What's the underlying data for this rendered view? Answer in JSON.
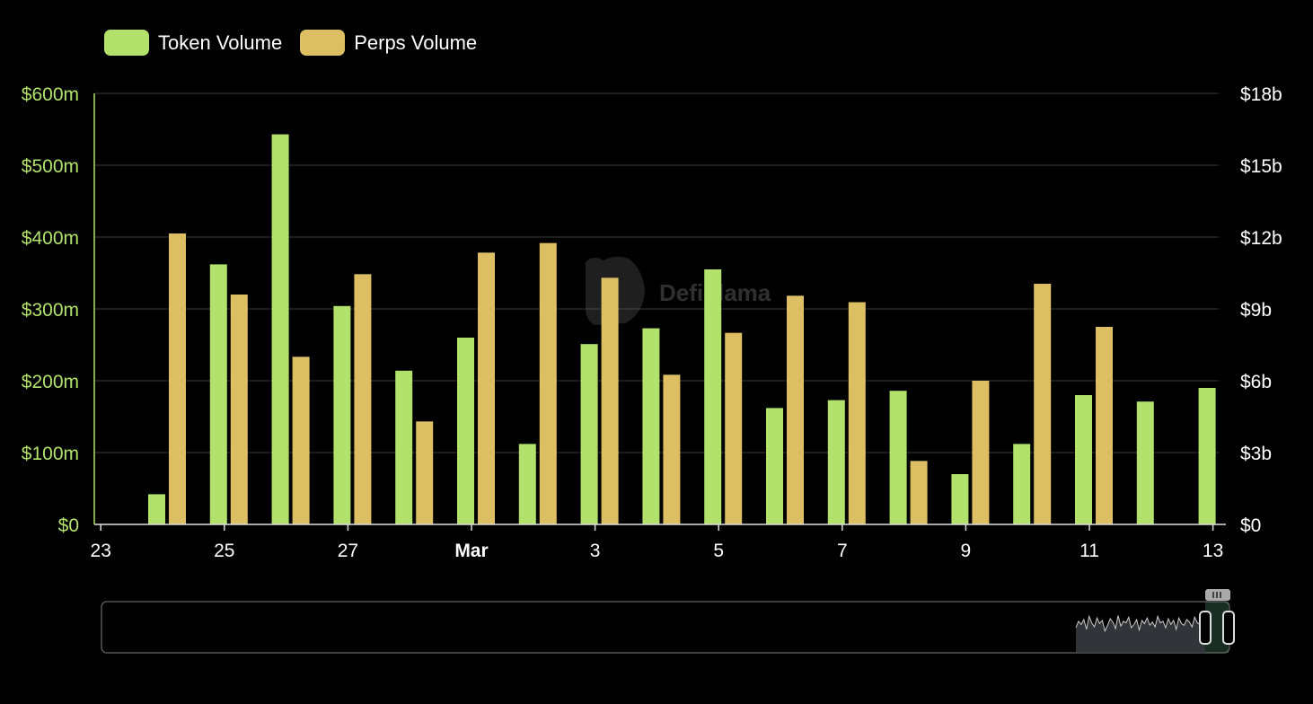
{
  "legend": [
    {
      "label": "Token Volume",
      "color": "#b2e26b"
    },
    {
      "label": "Perps Volume",
      "color": "#dcbf62"
    }
  ],
  "watermark": "DefiLlama",
  "chart_data": {
    "type": "bar",
    "x_tick_labels": [
      "23",
      "25",
      "27",
      "Mar",
      "3",
      "5",
      "7",
      "9",
      "11",
      "13"
    ],
    "categories": [
      "Feb 24",
      "Feb 25",
      "Feb 26",
      "Feb 27",
      "Feb 28",
      "Mar 1",
      "Mar 2",
      "Mar 3",
      "Mar 4",
      "Mar 5",
      "Mar 6",
      "Mar 7",
      "Mar 8",
      "Mar 9",
      "Mar 10",
      "Mar 11",
      "Mar 12",
      "Mar 13"
    ],
    "left_axis": {
      "ticks": [
        "$0",
        "$100m",
        "$200m",
        "$300m",
        "$400m",
        "$500m",
        "$600m"
      ],
      "range": [
        0,
        600
      ],
      "unit": "$m",
      "color": "#b2e26b"
    },
    "right_axis": {
      "ticks": [
        "$0",
        "$3b",
        "$6b",
        "$9b",
        "$12b",
        "$15b",
        "$18b"
      ],
      "range": [
        0,
        18
      ],
      "unit": "$b",
      "color": "#ffffff"
    },
    "series": [
      {
        "name": "Token Volume",
        "axis": "left",
        "color": "#b2e26b",
        "values": [
          42,
          362,
          543,
          304,
          214,
          260,
          112,
          251,
          273,
          355,
          162,
          173,
          186,
          70,
          112,
          180,
          171,
          190
        ]
      },
      {
        "name": "Perps Volume",
        "axis": "right",
        "color": "#dcbf62",
        "values": [
          12.15,
          9.6,
          7.0,
          10.45,
          4.3,
          11.35,
          11.75,
          10.3,
          6.25,
          8.0,
          9.55,
          9.28,
          2.65,
          6.0,
          10.05,
          8.25,
          null,
          null
        ]
      }
    ],
    "grid": true,
    "legend_position": "top-left"
  }
}
